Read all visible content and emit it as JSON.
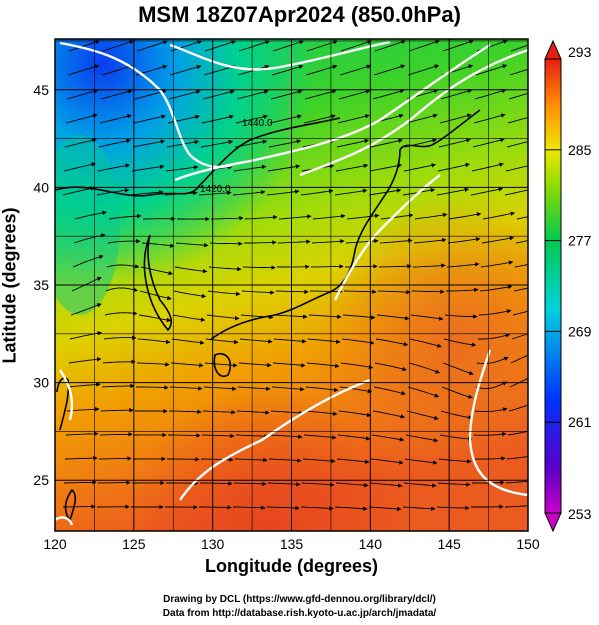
{
  "title": "MSM 18Z07Apr2024 (850.0hPa)",
  "xlabel": "Longitude (degrees)",
  "ylabel": "Latitude  (degrees)",
  "x_ticks": [
    "120",
    "125",
    "130",
    "135",
    "140",
    "145",
    "150"
  ],
  "y_ticks": [
    "45",
    "40",
    "35",
    "30",
    "25"
  ],
  "colorbar_ticks": [
    "293",
    "285",
    "277",
    "269",
    "261",
    "253"
  ],
  "contour_labels": [
    "1440.0",
    "1420.0"
  ],
  "credit_line1": "Drawing by DCL (https://www.gfd-dennou.org/library/dcl/)",
  "credit_line2": "Data from http://database.rish.kyoto-u.ac.jp/arch/jmadata/",
  "map": {
    "lon_range": [
      120,
      150
    ],
    "lat_range": [
      22.4,
      47.6
    ],
    "fill_field": "temperature (K)",
    "colorbar_range": [
      253,
      293
    ],
    "colormap": [
      "#c800c8",
      "#3c00c8",
      "#0050ff",
      "#00c8e6",
      "#00c850",
      "#78dc00",
      "#e6e600",
      "#ff9600",
      "#ff3200",
      "#e60000"
    ]
  }
}
